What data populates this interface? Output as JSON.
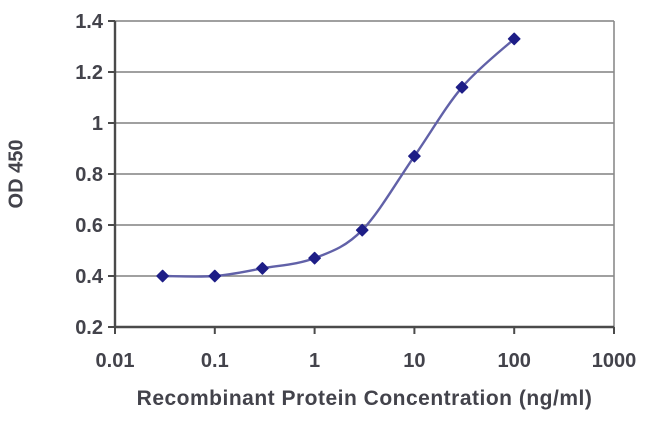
{
  "chart_data": {
    "type": "line",
    "title": "",
    "xlabel": "Recombinant Protein Concentration (ng/ml)",
    "ylabel": "OD 450",
    "x_scale": "log10",
    "xlim": [
      0.01,
      1000
    ],
    "ylim": [
      0.2,
      1.4
    ],
    "x": [
      0.03,
      0.1,
      0.3,
      1,
      3,
      10,
      30,
      100
    ],
    "y": [
      0.4,
      0.4,
      0.43,
      0.47,
      0.58,
      0.87,
      1.14,
      1.33
    ],
    "x_tick_values": [
      0.01,
      0.1,
      1,
      10,
      100,
      1000
    ],
    "x_tick_labels": [
      "0.01",
      "0.1",
      "1",
      "10",
      "100",
      "1000"
    ],
    "y_tick_values": [
      1.4,
      1.2,
      1.0,
      0.8,
      0.6,
      0.4,
      0.2
    ],
    "y_tick_labels": [
      "1.4",
      "1.2",
      "1",
      "0.8",
      "0.6",
      "0.4",
      "0.2"
    ],
    "grid": "horizontal",
    "legend": "none",
    "marker_shape": "diamond",
    "line_style": "smooth",
    "colors": {
      "line": "#6161a8",
      "marker": "#1e1e87",
      "grid": "#808080",
      "axis": "#4a4a4a",
      "border": "#8a8a8a",
      "text": "#43434b",
      "background": "#ffffff"
    }
  }
}
